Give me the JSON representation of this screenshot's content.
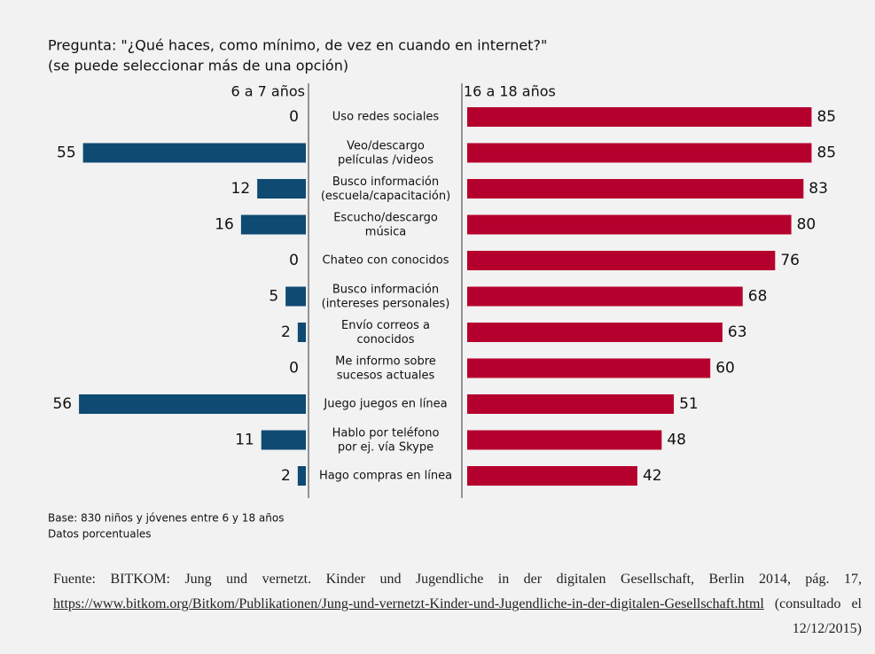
{
  "chart_data": {
    "type": "butterfly",
    "title": "Pregunta: \"¿Qué haces, como mínimo, de vez en cuando en internet?\"",
    "subtitle": "(se puede seleccionar más de una opción)",
    "categories": [
      "Uso redes sociales",
      "Veo/descargo\npelículas /videos",
      "Busco información\n(escuela/capacitación)",
      "Escucho/descargo\nmúsica",
      "Chateo con conocidos",
      "Busco información\n(intereses personales)",
      "Envío correos a\nconocidos",
      "Me informo sobre\nsucesos actuales",
      "Juego juegos en línea",
      "Hablo por teléfono\npor ej. vía Skype",
      "Hago compras en línea"
    ],
    "series": [
      {
        "name": "6 a 7 años",
        "color": "#0f4a73",
        "values": [
          0,
          55,
          12,
          16,
          0,
          5,
          2,
          0,
          56,
          11,
          2
        ]
      },
      {
        "name": "16 a 18 años",
        "color": "#b5002d",
        "values": [
          85,
          85,
          83,
          80,
          76,
          68,
          63,
          60,
          51,
          48,
          42
        ]
      }
    ],
    "notes": [
      "Base: 830 niños y jóvenes entre 6 y 18 años",
      "Datos porcentuales"
    ]
  },
  "source": {
    "text": "Fuente: BITKOM: Jung und vernetzt. Kinder und Jugendliche in der digitalen Gesellschaft, Berlin 2014, pág. 17,",
    "link": "https://www.bitkom.org/Bitkom/Publikationen/Jung-und-vernetzt-Kinder-und-Jugendliche-in-der-digitalen-Gesellschaft.html",
    "suffix": "(consultado el 12/12/2015)"
  }
}
